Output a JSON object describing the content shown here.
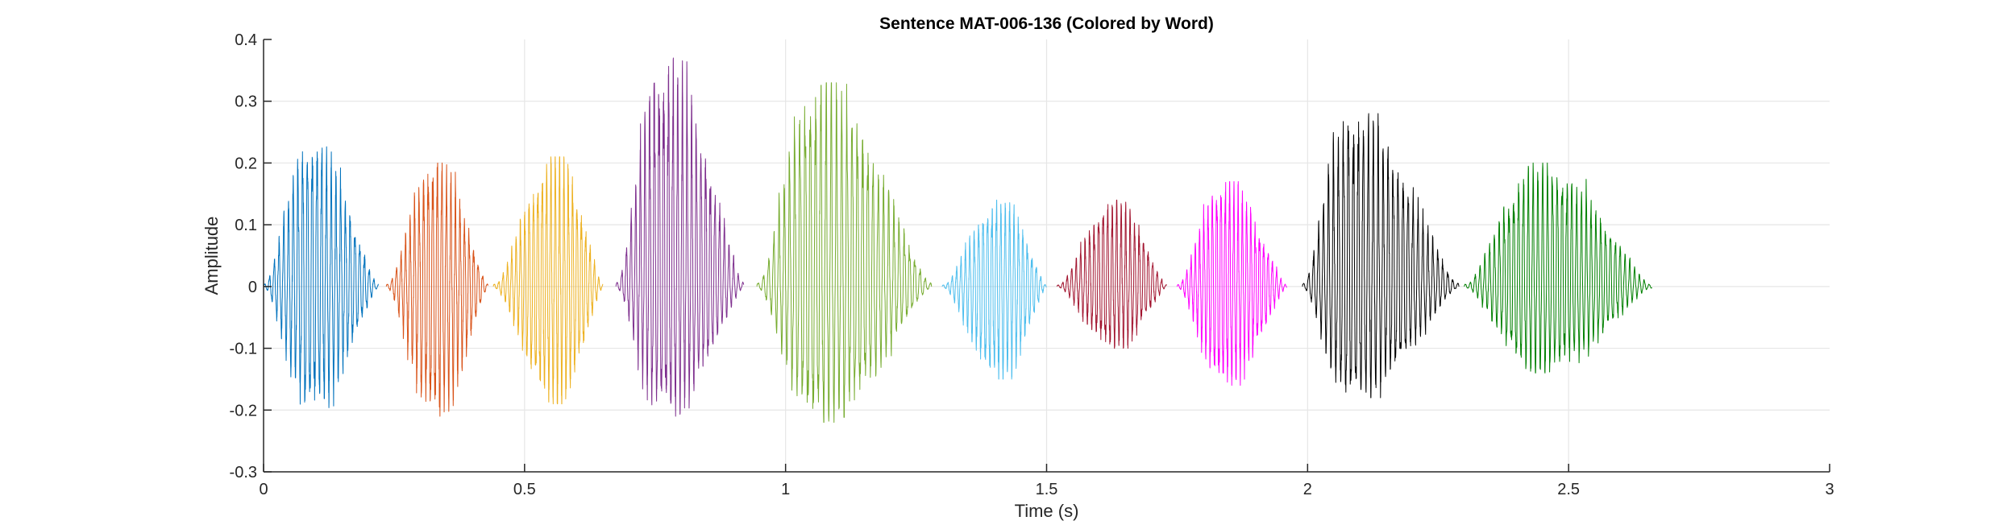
{
  "chart_data": {
    "type": "line",
    "title": "Sentence MAT-006-136 (Colored by Word)",
    "xlabel": "Time (s)",
    "ylabel": "Amplitude",
    "xlim": [
      0,
      3
    ],
    "ylim": [
      -0.3,
      0.4
    ],
    "xticks": [
      0,
      0.5,
      1,
      1.5,
      2,
      2.5,
      3
    ],
    "xtick_labels": [
      "0",
      "0.5",
      "1",
      "1.5",
      "2",
      "2.5",
      "3"
    ],
    "yticks": [
      -0.3,
      -0.2,
      -0.1,
      0,
      0.1,
      0.2,
      0.3,
      0.4
    ],
    "ytick_labels": [
      "-0.3",
      "-0.2",
      "-0.1",
      "0",
      "0.1",
      "0.2",
      "0.3",
      "0.4"
    ],
    "grid": true,
    "series": [
      {
        "color": "#0072BD",
        "start": 0.0,
        "end": 0.22,
        "peak_time": 0.09,
        "max": 0.23,
        "min": -0.2,
        "osc_freq": 110
      },
      {
        "color": "#D95319",
        "start": 0.235,
        "end": 0.43,
        "peak_time": 0.33,
        "max": 0.2,
        "min": -0.21,
        "osc_freq": 115
      },
      {
        "color": "#EDB120",
        "start": 0.44,
        "end": 0.65,
        "peak_time": 0.56,
        "max": 0.21,
        "min": -0.19,
        "osc_freq": 120
      },
      {
        "color": "#7E2F8E",
        "start": 0.675,
        "end": 0.92,
        "peak_time": 0.765,
        "max": 0.37,
        "min": -0.21,
        "osc_freq": 112
      },
      {
        "color": "#77AC30",
        "start": 0.945,
        "end": 1.28,
        "peak_time": 1.06,
        "max": 0.33,
        "min": -0.22,
        "osc_freq": 100
      },
      {
        "color": "#4DBEEE",
        "start": 1.3,
        "end": 1.5,
        "peak_time": 1.41,
        "max": 0.14,
        "min": -0.15,
        "osc_freq": 118
      },
      {
        "color": "#A2142F",
        "start": 1.52,
        "end": 1.73,
        "peak_time": 1.63,
        "max": 0.14,
        "min": -0.1,
        "osc_freq": 116
      },
      {
        "color": "#FF00FF",
        "start": 1.75,
        "end": 1.96,
        "peak_time": 1.84,
        "max": 0.17,
        "min": -0.16,
        "osc_freq": 122
      },
      {
        "color": "#000000",
        "start": 1.99,
        "end": 2.29,
        "peak_time": 2.08,
        "max": 0.28,
        "min": -0.18,
        "osc_freq": 105
      },
      {
        "color": "#008000",
        "start": 2.3,
        "end": 2.66,
        "peak_time": 2.44,
        "max": 0.2,
        "min": -0.14,
        "osc_freq": 108
      }
    ]
  }
}
